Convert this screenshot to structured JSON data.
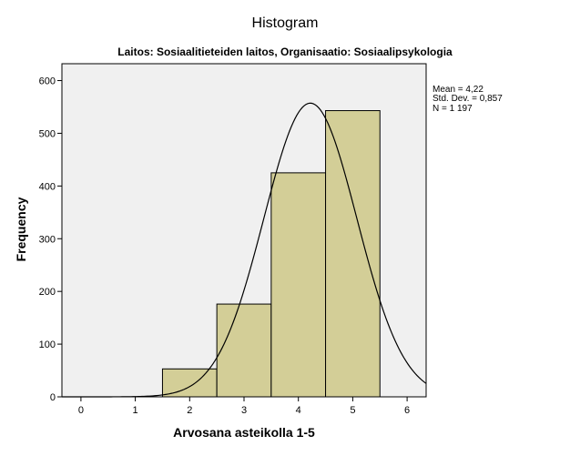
{
  "chart_data": {
    "type": "bar",
    "title": "Histogram",
    "subtitle": "Laitos: Sosiaalitieteiden laitos, Organisaatio: Sosiaalipsykologia",
    "xlabel": "Arvosana asteikolla 1-5",
    "ylabel": "Frequency",
    "xlim": [
      -0.35,
      6.35
    ],
    "ylim": [
      0,
      632
    ],
    "x_ticks": [
      0,
      1,
      2,
      3,
      4,
      5,
      6
    ],
    "y_ticks": [
      0,
      100,
      200,
      300,
      400,
      500,
      600
    ],
    "bins": [
      {
        "x0": 1.5,
        "x1": 2.5,
        "value": 53
      },
      {
        "x0": 2.5,
        "x1": 3.5,
        "value": 176
      },
      {
        "x0": 3.5,
        "x1": 4.5,
        "value": 425
      },
      {
        "x0": 4.5,
        "x1": 5.5,
        "value": 543
      }
    ],
    "normal_curve": {
      "mean": 4.22,
      "sd": 0.857,
      "n": 1197,
      "bin_width": 1
    },
    "stats": [
      "Mean = 4,22",
      "Std. Dev. = 0,857",
      "N = 1 197"
    ],
    "colors": {
      "plot_bg": "#f0f0f0",
      "bar_fill": "#d3ce97",
      "bar_stroke": "#000000",
      "curve": "#000000"
    },
    "grid": false,
    "legend": "none"
  }
}
